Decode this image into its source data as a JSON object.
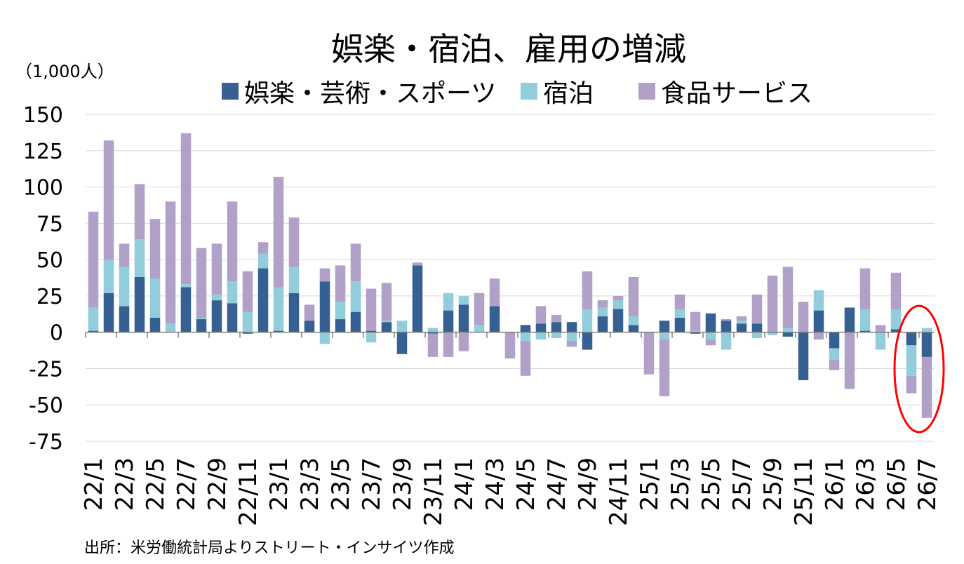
{
  "chart_data": {
    "type": "bar",
    "stacked": true,
    "title": "娯楽・宿泊、雇用の増減",
    "unit_label": "（1,000人）",
    "source": "出所：米労働統計局よりストリート・インサイツ作成",
    "legend_position": "top",
    "grid": true,
    "ylim": [
      -75,
      150
    ],
    "yticks": [
      150,
      125,
      100,
      75,
      50,
      25,
      0,
      -25,
      -50,
      -75
    ],
    "categories": [
      "22/1",
      "22/2",
      "22/3",
      "22/4",
      "22/5",
      "22/6",
      "22/7",
      "22/8",
      "22/9",
      "22/10",
      "22/11",
      "22/12",
      "23/1",
      "23/2",
      "23/3",
      "23/4",
      "23/5",
      "23/6",
      "23/7",
      "23/8",
      "23/9",
      "23/10",
      "23/11",
      "23/12",
      "24/1",
      "24/2",
      "24/3",
      "24/4",
      "24/5",
      "24/6",
      "24/7",
      "24/8",
      "24/9",
      "24/10",
      "24/11",
      "24/12",
      "25/1",
      "25/2",
      "25/3",
      "25/4",
      "25/5",
      "25/6",
      "25/7",
      "25/8",
      "25/9",
      "25/10",
      "25/11",
      "25/12",
      "26/1",
      "26/2",
      "26/3",
      "26/4",
      "26/5",
      "26/6",
      "26/7"
    ],
    "tick_labels": [
      "22/1",
      "22/3",
      "22/5",
      "22/7",
      "22/9",
      "22/11",
      "23/1",
      "23/3",
      "23/5",
      "23/7",
      "23/9",
      "23/11",
      "24/1",
      "24/3",
      "24/5",
      "24/7",
      "24/9",
      "24/11",
      "25/1",
      "25/3",
      "25/5",
      "25/7",
      "25/9",
      "25/11",
      "26/1",
      "26/3",
      "26/5",
      "26/7"
    ],
    "series": [
      {
        "name": "娯楽・芸術・スポーツ",
        "color": "#366092",
        "values": [
          1,
          27,
          18,
          38,
          10,
          0,
          31,
          9,
          22,
          20,
          -1,
          44,
          1,
          27,
          8,
          35,
          9,
          14,
          1,
          7,
          -15,
          46,
          -1,
          15,
          19,
          0,
          18,
          0,
          5,
          6,
          7,
          7,
          -12,
          11,
          16,
          5,
          0,
          8,
          10,
          -1,
          13,
          8,
          6,
          6,
          0,
          -3,
          -33,
          15,
          -11,
          17,
          1,
          0,
          2,
          -9,
          -17
        ]
      },
      {
        "name": "宿泊",
        "color": "#92CDDC",
        "values": [
          16,
          23,
          27,
          26,
          27,
          6,
          2,
          1,
          4,
          15,
          14,
          10,
          30,
          18,
          0,
          -8,
          12,
          21,
          -7,
          1,
          8,
          0,
          3,
          12,
          6,
          5,
          0,
          0,
          -6,
          -5,
          -4,
          -6,
          16,
          6,
          6,
          6,
          0,
          -5,
          6,
          1,
          -5,
          -12,
          2,
          -4,
          -2,
          3,
          0,
          14,
          -8,
          0,
          15,
          -12,
          14,
          -21,
          3
        ]
      },
      {
        "name": "食品サービス",
        "color": "#B1A0C7",
        "values": [
          66,
          82,
          16,
          38,
          41,
          84,
          104,
          48,
          35,
          55,
          28,
          8,
          76,
          34,
          11,
          9,
          25,
          26,
          29,
          26,
          0,
          2,
          -16,
          -17,
          -13,
          22,
          19,
          -18,
          -24,
          12,
          5,
          -4,
          26,
          5,
          3,
          27,
          -29,
          -39,
          10,
          13,
          -4,
          1,
          3,
          20,
          39,
          42,
          21,
          -5,
          -7,
          -39,
          28,
          5,
          25,
          -12,
          -42
        ]
      }
    ]
  },
  "annotation": {
    "shape": "ellipse",
    "color": "#FF0000",
    "highlights": [
      "26/6",
      "26/7"
    ]
  }
}
